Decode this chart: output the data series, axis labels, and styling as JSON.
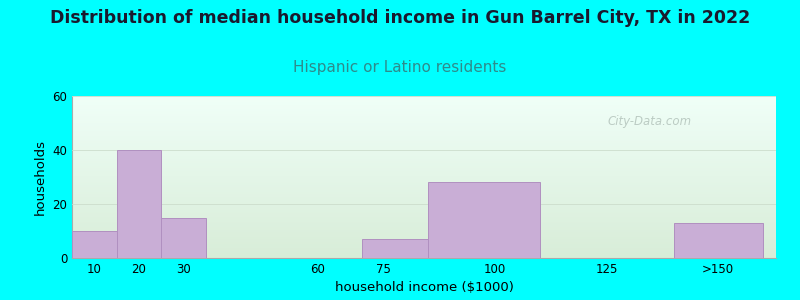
{
  "title": "Distribution of median household income in Gun Barrel City, TX in 2022",
  "subtitle": "Hispanic or Latino residents",
  "xlabel": "household income ($1000)",
  "ylabel": "households",
  "title_fontsize": 12.5,
  "subtitle_fontsize": 11,
  "title_color": "#1a1a2e",
  "subtitle_color": "#2e8b8b",
  "bar_color": "#c9aed6",
  "bar_edge_color": "#b090c0",
  "background_color": "#00ffff",
  "plot_bg_top": "#f0fff8",
  "plot_bg_bottom": "#d8edd8",
  "ylim": [
    0,
    60
  ],
  "yticks": [
    0,
    20,
    40,
    60
  ],
  "values": [
    10,
    40,
    15,
    0,
    7,
    28,
    0,
    13
  ],
  "bar_left_edges": [
    5,
    15,
    25,
    55,
    70,
    85,
    110,
    140
  ],
  "bar_right_edges": [
    15,
    25,
    35,
    65,
    85,
    110,
    130,
    160
  ],
  "xtick_labels": [
    "10",
    "20",
    "30",
    "60",
    "75",
    "100",
    "125",
    ">150"
  ],
  "xtick_positions": [
    10,
    20,
    30,
    60,
    75,
    100,
    125,
    150
  ],
  "xlim": [
    5,
    163
  ],
  "watermark": "City-Data.com"
}
